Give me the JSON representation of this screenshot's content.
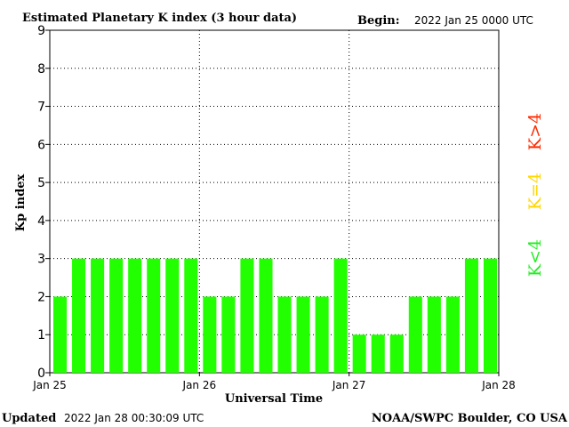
{
  "header": {
    "title": "Estimated Planetary K index (3 hour data)",
    "begin_label": "Begin:",
    "begin_value": "2022 Jan 25 0000 UTC"
  },
  "footer": {
    "updated_label": "Updated",
    "updated_value": "2022 Jan 28 00:30:09 UTC",
    "source": "NOAA/SWPC Boulder, CO USA"
  },
  "legend": [
    {
      "label": "K<4",
      "color": "#22ee22"
    },
    {
      "label": "K=4",
      "color": "#ffd700"
    },
    {
      "label": "K>4",
      "color": "#ff2a00"
    }
  ],
  "chart_data": {
    "type": "bar",
    "title": "Estimated Planetary K index (3 hour data)",
    "xlabel": "Universal Time",
    "ylabel": "Kp index",
    "ylim": [
      0,
      9
    ],
    "yticks": [
      0,
      1,
      2,
      3,
      4,
      5,
      6,
      7,
      8,
      9
    ],
    "xticks": [
      "Jan 25",
      "Jan 26",
      "Jan 27",
      "Jan 28"
    ],
    "bar_color": "#22ff00",
    "grid": true,
    "values": [
      2,
      3,
      3,
      3,
      3,
      3,
      3,
      3,
      2,
      2,
      3,
      3,
      2,
      2,
      2,
      3,
      1,
      1,
      1,
      2,
      2,
      2,
      3,
      3
    ]
  }
}
